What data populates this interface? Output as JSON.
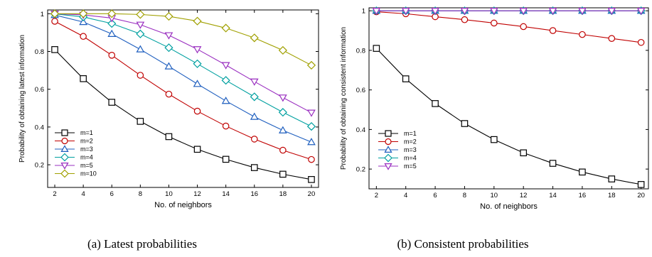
{
  "chart_data": [
    {
      "type": "line",
      "caption": "(a) Latest probabilities",
      "xlabel": "No. of neighbors",
      "ylabel": "Probability of obtaining latest information",
      "xlim": [
        1.5,
        20.5
      ],
      "ylim": [
        0.08,
        1.02
      ],
      "xticks": [
        2,
        4,
        6,
        8,
        10,
        12,
        14,
        16,
        18,
        20
      ],
      "yticks": [
        0.2,
        0.4,
        0.6,
        0.8,
        1.0
      ],
      "ytick_labels": [
        "0.2",
        "0.4",
        "0.6",
        "0.8",
        "1"
      ],
      "legend_position": "bottom-left",
      "x": [
        2,
        4,
        6,
        8,
        10,
        12,
        14,
        16,
        18,
        20
      ],
      "series": [
        {
          "name": "m=1",
          "color": "#000000",
          "marker": "square",
          "values": [
            0.81,
            0.656,
            0.531,
            0.43,
            0.349,
            0.282,
            0.229,
            0.185,
            0.15,
            0.122
          ]
        },
        {
          "name": "m=2",
          "color": "#c00000",
          "marker": "circle",
          "values": [
            0.96,
            0.88,
            0.78,
            0.674,
            0.574,
            0.484,
            0.405,
            0.336,
            0.277,
            0.228
          ]
        },
        {
          "name": "m=3",
          "color": "#1f5fbf",
          "marker": "triangle-up",
          "values": [
            0.993,
            0.956,
            0.893,
            0.811,
            0.721,
            0.628,
            0.538,
            0.454,
            0.382,
            0.32
          ]
        },
        {
          "name": "m=4",
          "color": "#00a0a0",
          "marker": "diamond",
          "values": [
            0.999,
            0.983,
            0.948,
            0.893,
            0.82,
            0.735,
            0.647,
            0.56,
            0.478,
            0.403
          ]
        },
        {
          "name": "m=5",
          "color": "#9a2fc0",
          "marker": "triangle-down",
          "values": [
            1.0,
            0.994,
            0.977,
            0.942,
            0.886,
            0.812,
            0.728,
            0.641,
            0.556,
            0.476
          ]
        },
        {
          "name": "m=10",
          "color": "#a0a000",
          "marker": "diamond",
          "values": [
            1.0,
            1.0,
            1.0,
            0.996,
            0.986,
            0.961,
            0.924,
            0.872,
            0.806,
            0.727
          ]
        }
      ]
    },
    {
      "type": "line",
      "caption": "(b) Consistent probabilities",
      "xlabel": "No. of neighbors",
      "ylabel": "Probability of obtaining consistent information",
      "xlim": [
        1.5,
        20.5
      ],
      "ylim": [
        0.1,
        1.015
      ],
      "xticks": [
        2,
        4,
        6,
        8,
        10,
        12,
        14,
        16,
        18,
        20
      ],
      "yticks": [
        0.2,
        0.4,
        0.6,
        0.8,
        1.0
      ],
      "ytick_labels": [
        "0.2",
        "0.4",
        "0.6",
        "0.8",
        "1"
      ],
      "legend_position": "bottom-left",
      "x": [
        2,
        4,
        6,
        8,
        10,
        12,
        14,
        16,
        18,
        20
      ],
      "series": [
        {
          "name": "m=1",
          "color": "#000000",
          "marker": "square",
          "values": [
            0.81,
            0.656,
            0.531,
            0.43,
            0.349,
            0.282,
            0.229,
            0.185,
            0.15,
            0.122
          ]
        },
        {
          "name": "m=2",
          "color": "#c00000",
          "marker": "circle",
          "values": [
            0.995,
            0.985,
            0.97,
            0.955,
            0.938,
            0.92,
            0.9,
            0.88,
            0.86,
            0.84
          ]
        },
        {
          "name": "m=3",
          "color": "#1f5fbf",
          "marker": "triangle-up",
          "values": [
            1.0,
            1.0,
            1.0,
            1.0,
            1.0,
            1.0,
            1.0,
            1.0,
            1.0,
            1.0
          ]
        },
        {
          "name": "m=4",
          "color": "#00a0a0",
          "marker": "diamond",
          "values": [
            1.0,
            1.0,
            1.0,
            1.0,
            1.0,
            1.0,
            1.0,
            1.0,
            1.0,
            1.0
          ]
        },
        {
          "name": "m=5",
          "color": "#9a2fc0",
          "marker": "triangle-down",
          "values": [
            1.0,
            1.0,
            1.0,
            1.0,
            1.0,
            1.0,
            1.0,
            1.0,
            1.0,
            1.0
          ]
        }
      ]
    }
  ]
}
